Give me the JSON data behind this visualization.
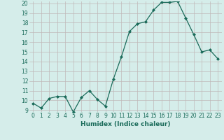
{
  "x": [
    0,
    1,
    2,
    3,
    4,
    5,
    6,
    7,
    8,
    9,
    10,
    11,
    12,
    13,
    14,
    15,
    16,
    17,
    18,
    19,
    20,
    21,
    22,
    23
  ],
  "y": [
    9.7,
    9.2,
    10.2,
    10.4,
    10.4,
    8.8,
    10.3,
    11.0,
    10.1,
    9.4,
    12.2,
    14.5,
    17.1,
    17.9,
    18.1,
    19.3,
    20.1,
    20.1,
    20.2,
    18.5,
    16.8,
    15.0,
    15.2,
    14.3
  ],
  "xlabel": "Humidex (Indice chaleur)",
  "ylim_min": 9,
  "ylim_max": 20,
  "yticks": [
    9,
    10,
    11,
    12,
    13,
    14,
    15,
    16,
    17,
    18,
    19,
    20
  ],
  "xticks": [
    0,
    1,
    2,
    3,
    4,
    5,
    6,
    7,
    8,
    9,
    10,
    11,
    12,
    13,
    14,
    15,
    16,
    17,
    18,
    19,
    20,
    21,
    22,
    23
  ],
  "line_color": "#1a6b5a",
  "marker": "D",
  "marker_size": 2.0,
  "bg_color": "#d5edea",
  "grid_color": "#c0b8b8",
  "tick_label_fontsize": 5.5,
  "xlabel_fontsize": 6.5,
  "line_width": 0.9
}
